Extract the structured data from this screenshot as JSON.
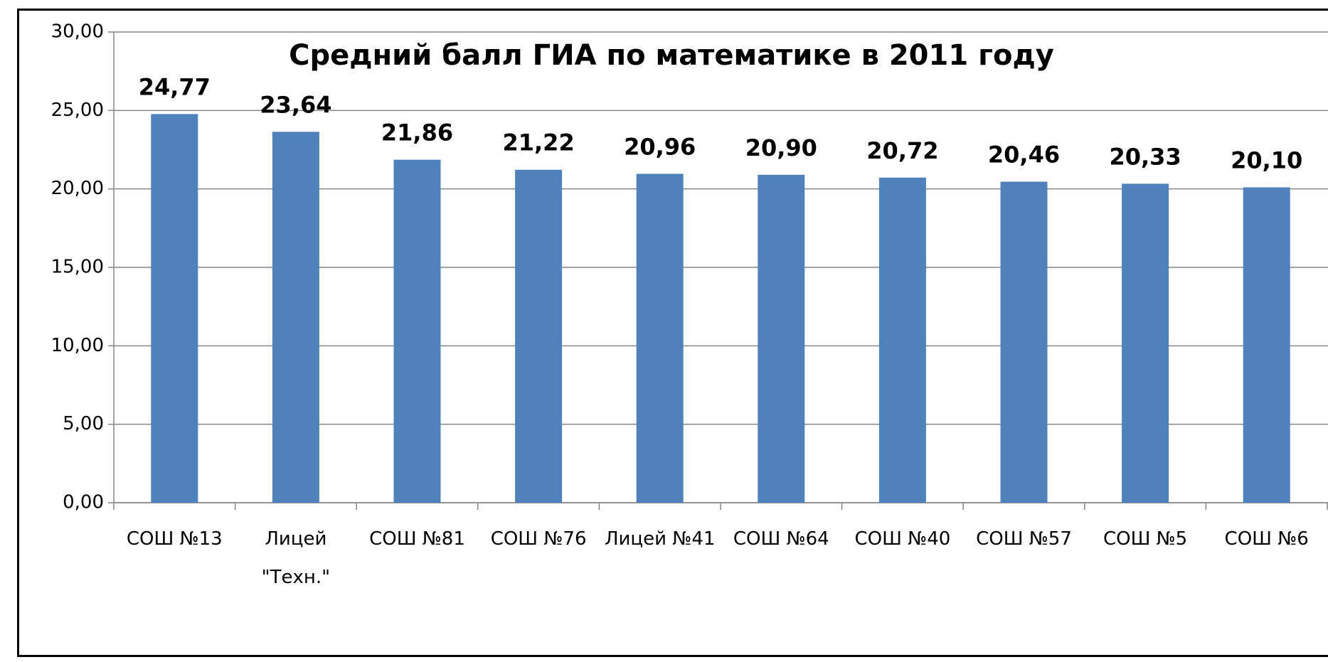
{
  "chart_data": {
    "type": "bar",
    "title": "Средний балл ГИА по математике в 2011 году",
    "categories": [
      "СОШ №13",
      "Лицей \"Техн.\"",
      "СОШ №81",
      "СОШ №76",
      "Лицей №41",
      "СОШ №64",
      "СОШ №40",
      "СОШ №57",
      "СОШ №5",
      "СОШ №6"
    ],
    "values": [
      24.77,
      23.64,
      21.86,
      21.22,
      20.96,
      20.9,
      20.72,
      20.46,
      20.33,
      20.1
    ],
    "value_labels": [
      "24,77",
      "23,64",
      "21,86",
      "21,22",
      "20,96",
      "20,90",
      "20,72",
      "20,46",
      "20,33",
      "20,10"
    ],
    "color": "#4f81bd",
    "ylim": [
      0,
      30
    ],
    "yticks": [
      {
        "value": 0,
        "label": "0,00"
      },
      {
        "value": 5,
        "label": "5,00"
      },
      {
        "value": 10,
        "label": "10,00"
      },
      {
        "value": 15,
        "label": "15,00"
      },
      {
        "value": 20,
        "label": "20,00"
      },
      {
        "value": 25,
        "label": "25,00"
      },
      {
        "value": 30,
        "label": "30,00"
      }
    ],
    "grid": true
  }
}
